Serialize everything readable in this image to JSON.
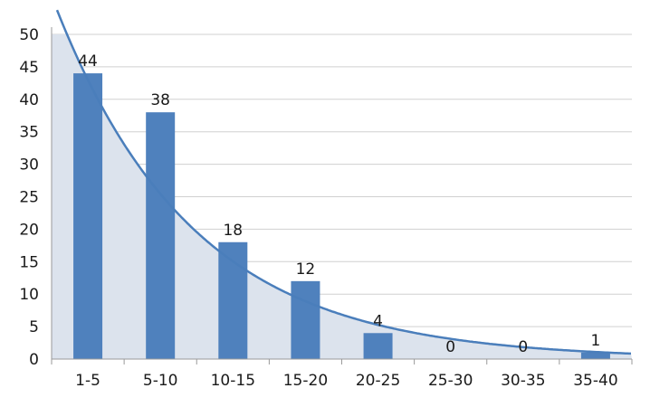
{
  "chart_data": {
    "type": "bar",
    "title": "",
    "xlabel": "",
    "ylabel": "",
    "categories": [
      "1-5",
      "5-10",
      "10-15",
      "15-20",
      "20-25",
      "25-30",
      "30-35",
      "35-40"
    ],
    "values": [
      44,
      38,
      18,
      12,
      4,
      0,
      0,
      1
    ],
    "ylim": [
      0,
      50
    ],
    "yticks": [
      "0",
      "5",
      "10",
      "15",
      "20",
      "25",
      "30",
      "35",
      "40",
      "45",
      "50"
    ],
    "grid": true,
    "legend": "none",
    "trendline": {
      "type": "exponential",
      "a": 55.9,
      "b": 0.105,
      "x0": 2.5,
      "dx": 5
    },
    "colors": {
      "bar": "#4f81bd",
      "trend": "#4a7ebb",
      "fill": "#dce3ed"
    }
  }
}
